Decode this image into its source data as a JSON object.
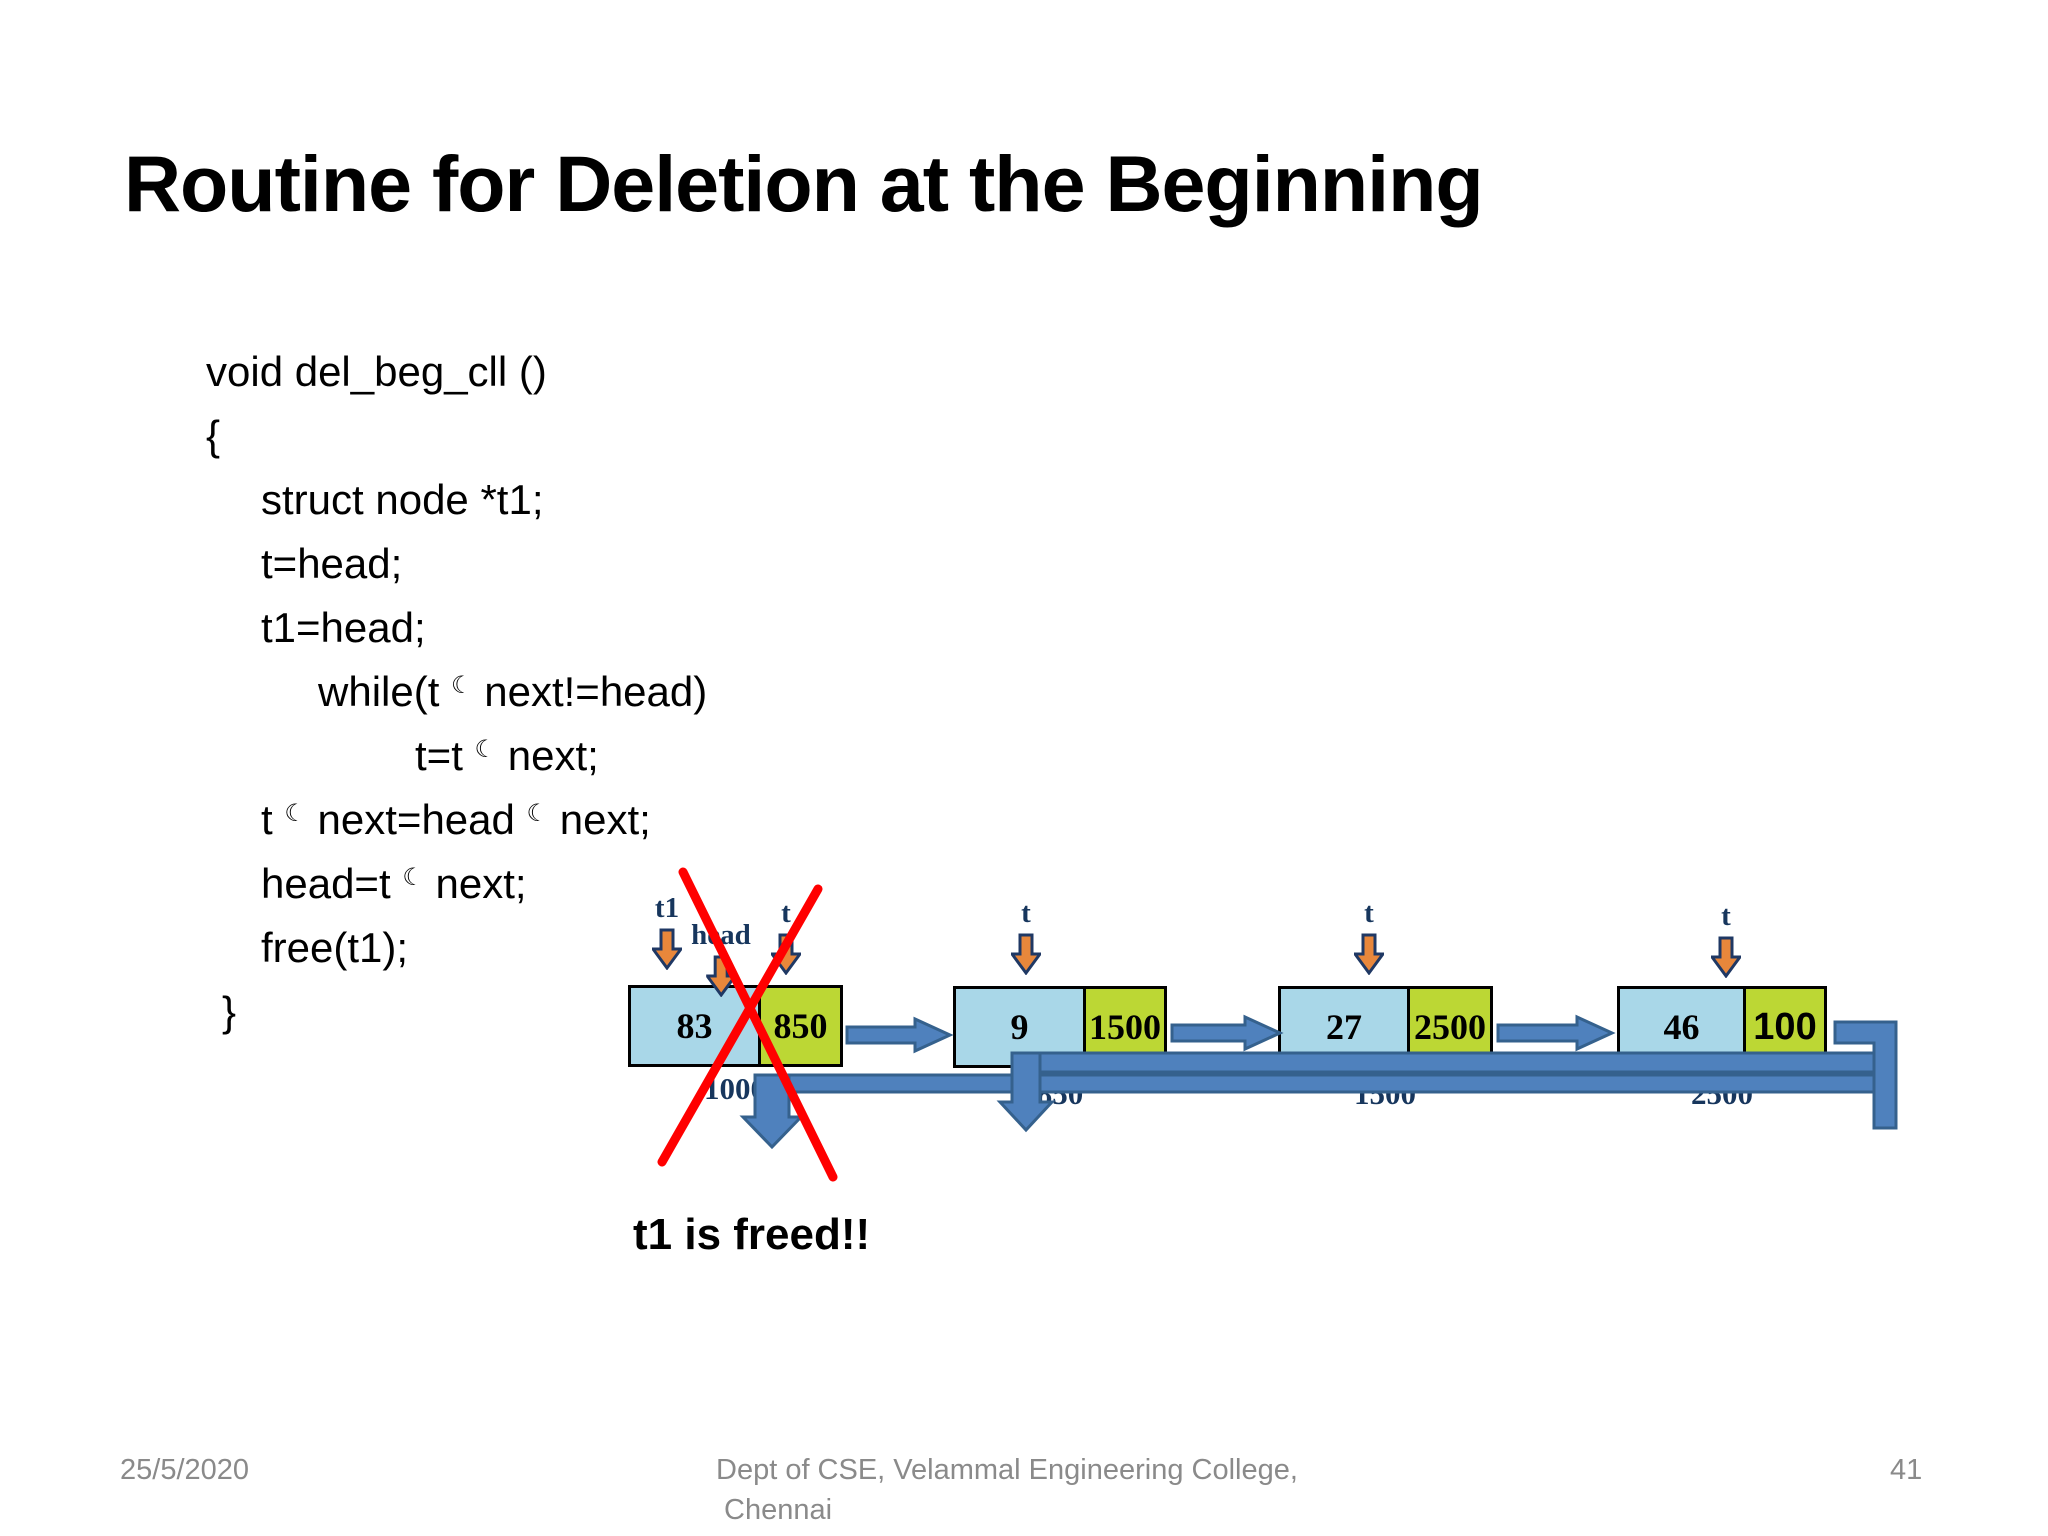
{
  "slide": {
    "title": "Routine for Deletion at the Beginning",
    "caption": "t1 is freed!!"
  },
  "icons": {
    "arrow-moon": "☾",
    "pointer-down-arrow": "block-down-arrow",
    "link-right-arrow": "block-right-arrow"
  },
  "code": {
    "lines": [
      {
        "segments": [
          {
            "text": "void del_beg_cll ()"
          }
        ]
      },
      {
        "segments": [
          {
            "text": "{"
          }
        ]
      },
      {
        "segments": [
          {
            "text": "struct node *t1;"
          }
        ]
      },
      {
        "segments": [
          {
            "text": "t=head;"
          }
        ]
      },
      {
        "segments": [
          {
            "text": "t1=head;"
          }
        ]
      },
      {
        "segments": [
          {
            "text": "while(t "
          },
          {
            "icon": "arrow-moon"
          },
          {
            "text": " next!=head)"
          }
        ]
      },
      {
        "segments": [
          {
            "text": "t=t "
          },
          {
            "icon": "arrow-moon"
          },
          {
            "text": " next;"
          }
        ]
      },
      {
        "segments": [
          {
            "text": "t "
          },
          {
            "icon": "arrow-moon"
          },
          {
            "text": " next=head "
          },
          {
            "icon": "arrow-moon"
          },
          {
            "text": " next;"
          }
        ]
      },
      {
        "segments": [
          {
            "text": "head=t "
          },
          {
            "icon": "arrow-moon"
          },
          {
            "text": " next;"
          }
        ]
      },
      {
        "segments": [
          {
            "text": "free(t1);"
          }
        ]
      },
      {
        "segments": [
          {
            "text": "}"
          }
        ]
      }
    ]
  },
  "diagram": {
    "pointers": [
      {
        "label": "t1"
      },
      {
        "label": "head"
      },
      {
        "label": "t"
      },
      {
        "label": "t"
      },
      {
        "label": "t"
      },
      {
        "label": "t"
      }
    ],
    "nodes": [
      {
        "data": "83",
        "next": "850",
        "address": "1000"
      },
      {
        "data": "9",
        "next": "1500",
        "address": "850"
      },
      {
        "data": "27",
        "next": "2500",
        "address": "1500"
      },
      {
        "data": "46",
        "next": "100",
        "address": "2500"
      }
    ]
  },
  "footer": {
    "date": "25/5/2020",
    "org_line1": "Dept of CSE, Velammal Engineering College,",
    "org_line2": "Chennai",
    "page": "41"
  },
  "colors": {
    "steel_blue": "#4F81BD",
    "steel_blue_border": "#35618D",
    "node_data_bg": "#A9D7E8",
    "node_next_bg": "#BCD734",
    "pointer_navy": "#17365D",
    "pointer_orange": "#E8873B",
    "cross_red": "#FF0000",
    "footer_gray": "#8A8A8A"
  }
}
